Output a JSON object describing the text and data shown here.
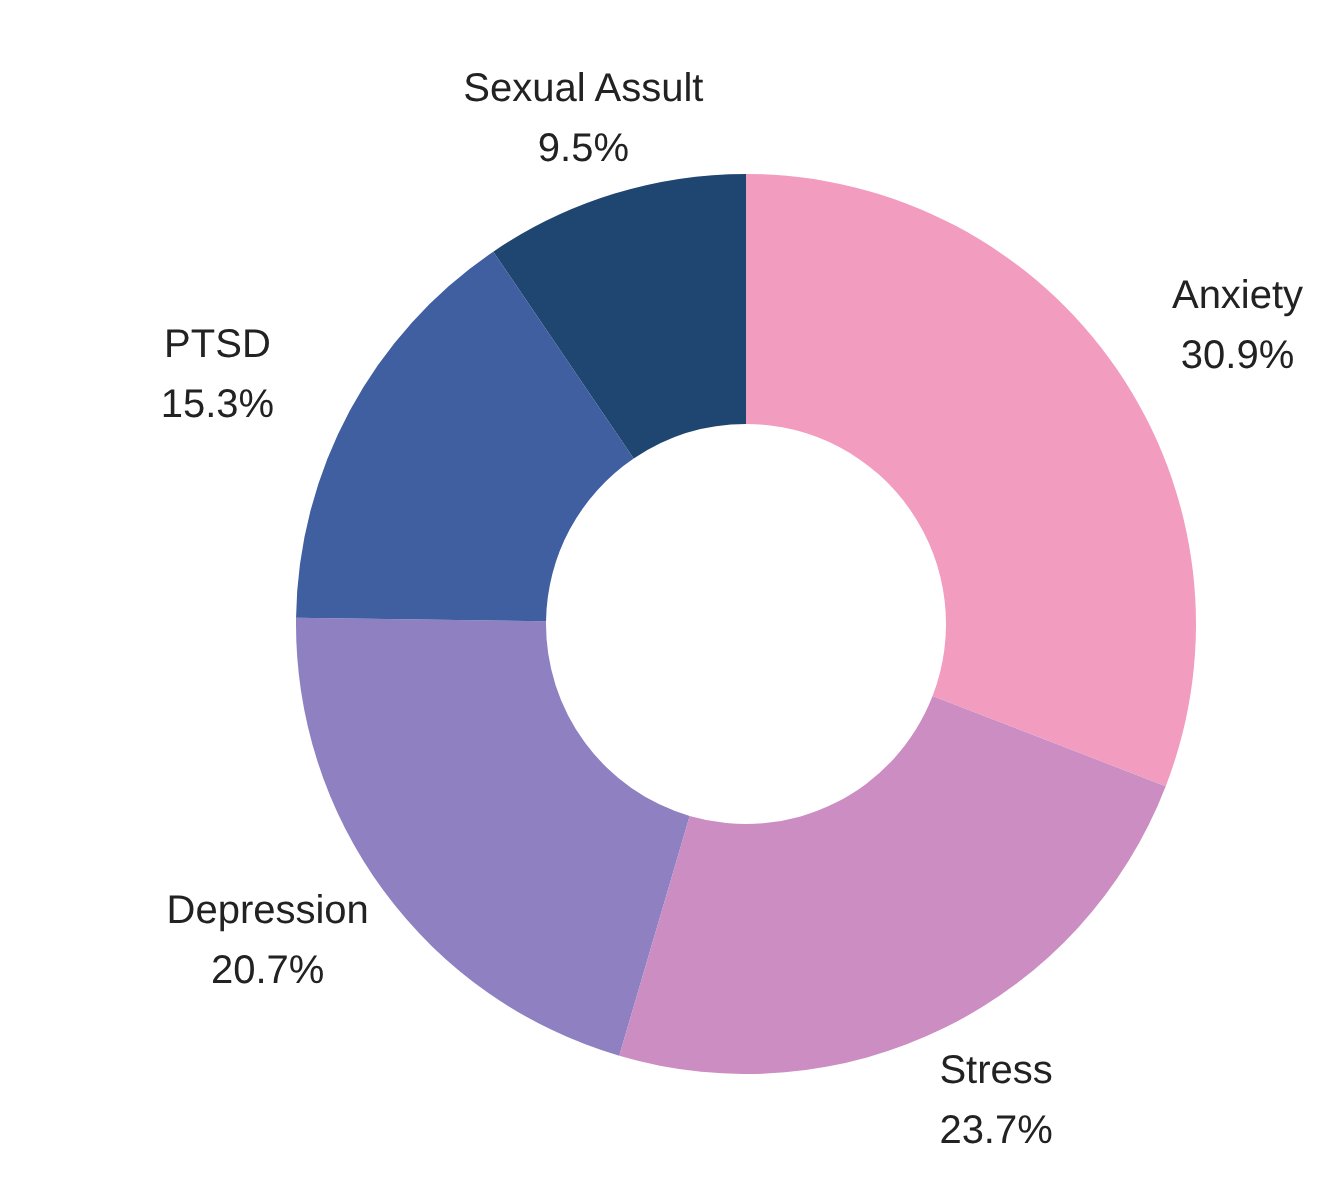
{
  "chart_data": {
    "type": "donut",
    "categories": [
      "Anxiety",
      "Stress",
      "Depression",
      "PTSD",
      "Sexual Assult"
    ],
    "values": [
      30.9,
      23.7,
      20.7,
      15.3,
      9.5
    ],
    "value_labels": [
      "30.9%",
      "23.7%",
      "20.7%",
      "15.3%",
      "9.5%"
    ],
    "colors": [
      "#f29cc0",
      "#cc8dc2",
      "#8f80c2",
      "#405fa0",
      "#1f4671"
    ]
  }
}
